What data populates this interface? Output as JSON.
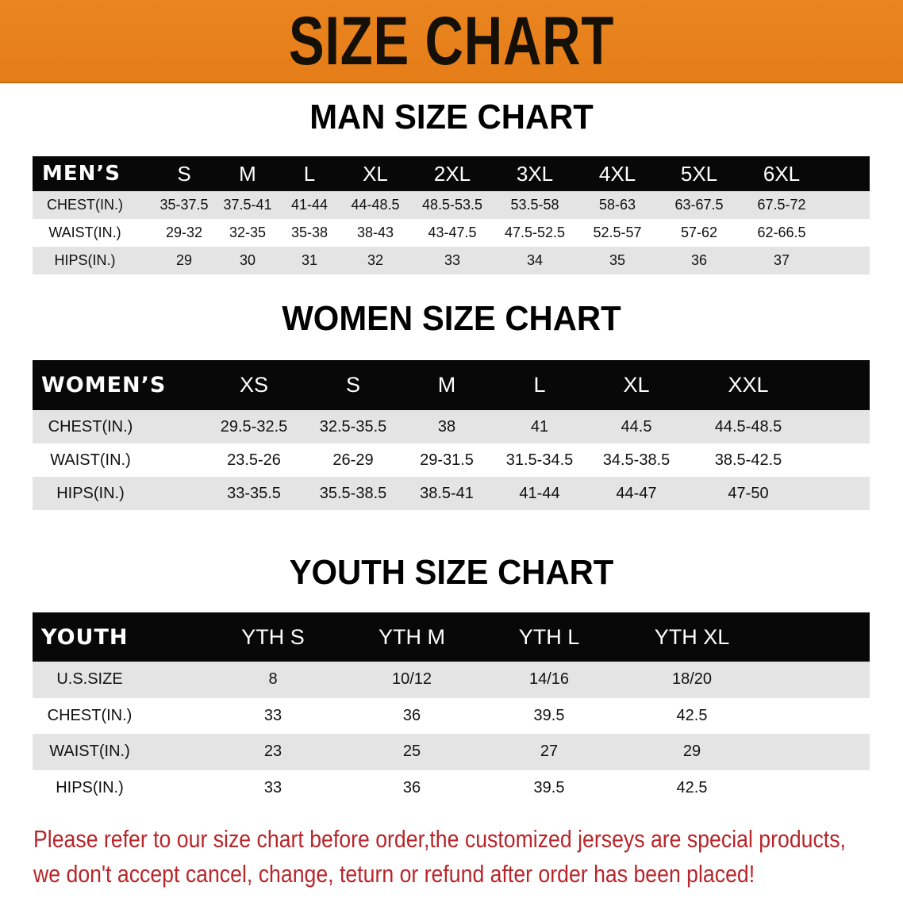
{
  "banner": {
    "title": "SIZE CHART",
    "color": "#e8821e"
  },
  "men": {
    "title": "MAN SIZE CHART",
    "header": [
      "MEN’S",
      "S",
      "M",
      "L",
      "XL",
      "2XL",
      "3XL",
      "4XL",
      "5XL",
      "6XL"
    ],
    "rows": [
      [
        "CHEST(IN.)",
        "35-37.5",
        "37.5-41",
        "41-44",
        "44-48.5",
        "48.5-53.5",
        "53.5-58",
        "58-63",
        "63-67.5",
        "67.5-72"
      ],
      [
        "WAIST(IN.)",
        "29-32",
        "32-35",
        "35-38",
        "38-43",
        "43-47.5",
        "47.5-52.5",
        "52.5-57",
        "57-62",
        "62-66.5"
      ],
      [
        "HIPS(IN.)",
        "29",
        "30",
        "31",
        "32",
        "33",
        "34",
        "35",
        "36",
        "37"
      ]
    ]
  },
  "women": {
    "title": "WOMEN SIZE CHART",
    "header": [
      "WOMEN’S",
      "XS",
      "S",
      "M",
      "L",
      "XL",
      "XXL"
    ],
    "rows": [
      [
        "CHEST(IN.)",
        "29.5-32.5",
        "32.5-35.5",
        "38",
        "41",
        "44.5",
        "44.5-48.5"
      ],
      [
        "WAIST(IN.)",
        "23.5-26",
        "26-29",
        "29-31.5",
        "31.5-34.5",
        "34.5-38.5",
        "38.5-42.5"
      ],
      [
        "HIPS(IN.)",
        "33-35.5",
        "35.5-38.5",
        "38.5-41",
        "41-44",
        "44-47",
        "47-50"
      ]
    ]
  },
  "youth": {
    "title": "YOUTH SIZE CHART",
    "header": [
      "YOUTH",
      "YTH S",
      "YTH M",
      "YTH L",
      "YTH XL"
    ],
    "rows": [
      [
        "U.S.SIZE",
        "8",
        "10/12",
        "14/16",
        "18/20"
      ],
      [
        "CHEST(IN.)",
        "33",
        "36",
        "39.5",
        "42.5"
      ],
      [
        "WAIST(IN.)",
        "23",
        "25",
        "27",
        "29"
      ],
      [
        "HIPS(IN.)",
        "33",
        "36",
        "39.5",
        "42.5"
      ]
    ]
  },
  "notice": {
    "line1": "Please refer to our size chart before order,the customized jerseys are special products,",
    "line2": "we don't accept cancel, change, teturn or refund after order has been placed!",
    "color": "#b7262b"
  }
}
